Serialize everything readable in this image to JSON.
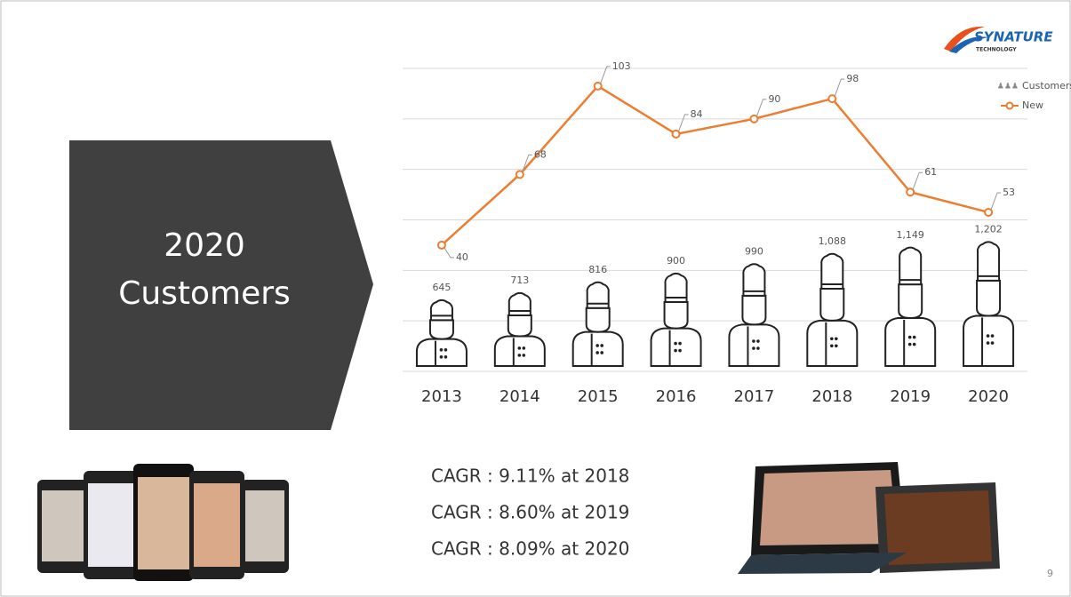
{
  "logo": {
    "name": "SYNATURE",
    "tagline": "TECHNOLOGY"
  },
  "chart_data": {
    "type": "combo",
    "title": "2020 Customers",
    "categories": [
      "2013",
      "2014",
      "2015",
      "2016",
      "2017",
      "2018",
      "2019",
      "2020"
    ],
    "series": [
      {
        "name": "Customers",
        "type": "pictogram",
        "axis": "y2",
        "color": "#222222",
        "values": [
          645,
          713,
          816,
          900,
          990,
          1088,
          1149,
          1202
        ],
        "value_labels": [
          "645",
          "713",
          "816",
          "900",
          "990",
          "1,088",
          "1,149",
          "1,202"
        ]
      },
      {
        "name": "New",
        "type": "line",
        "color": "#ed7d31",
        "values": [
          40,
          68,
          103,
          84,
          90,
          98,
          61,
          53
        ]
      }
    ],
    "ylim": [
      -10,
      110
    ],
    "yticks": [
      -10,
      10,
      30,
      50,
      70,
      90,
      110
    ],
    "tick_labels": false,
    "y2lim": [
      0,
      2900
    ],
    "grid": true,
    "legend": "top-right"
  },
  "notes": [
    "CAGR : 9.11% at 2018",
    "CAGR : 8.60% at 2019",
    "CAGR : 8.09% at 2020"
  ],
  "page_number": 9
}
